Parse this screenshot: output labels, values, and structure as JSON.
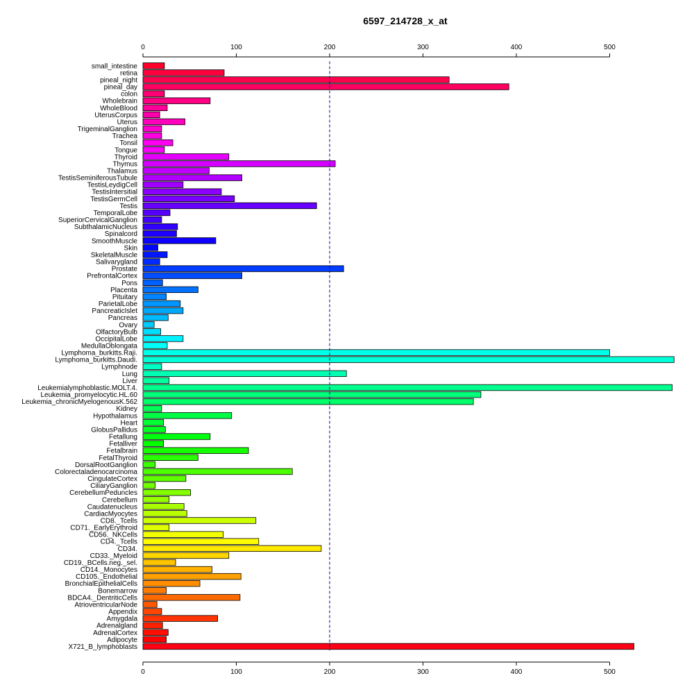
{
  "chart_data": {
    "type": "bar",
    "orientation": "horizontal",
    "title": "6597_214728_x_at",
    "xlabel": "",
    "ylabel": "",
    "xlim": [
      0,
      570
    ],
    "xticks": [
      0,
      100,
      200,
      300,
      400,
      500
    ],
    "xticks_top": true,
    "xticks_bottom": true,
    "grid": false,
    "reference_line": {
      "value": 200,
      "style": "dashed",
      "color": "#000080"
    },
    "categories": [
      "small_intestine",
      "retina",
      "pineal_night",
      "pineal_day",
      "colon",
      "Wholebrain",
      "WholeBlood",
      "UterusCorpus",
      "Uterus",
      "TrigeminalGanglion",
      "Trachea",
      "Tonsil",
      "Tongue",
      "Thyroid",
      "Thymus",
      "Thalamus",
      "TestisSeminiferousTubule",
      "TestisLeydigCell",
      "TestisIntersitial",
      "TestisGermCell",
      "Testis",
      "TemporalLobe",
      "SuperiorCervicalGanglion",
      "SubthalamicNucleus",
      "Spinalcord",
      "SmoothMuscle",
      "Skin",
      "SkeletalMuscle",
      "Salivarygland",
      "Prostate",
      "PrefrontalCortex",
      "Pons",
      "Placenta",
      "Pituitary",
      "ParietalLobe",
      "PancreaticIslet",
      "Pancreas",
      "Ovary",
      "OlfactoryBulb",
      "OccipitalLobe",
      "MedullaOblongata",
      "Lymphoma_burkitts.Raji.",
      "Lymphoma_burkitts.Daudi.",
      "Lymphnode",
      "Lung",
      "Liver",
      "Leukemialymphoblastic.MOLT.4.",
      "Leukemia_promyelocytic.HL.60",
      "Leukemia_chronicMyelogenousK.562",
      "Kidney",
      "Hypothalamus",
      "Heart",
      "GlobusPallidus",
      "Fetallung",
      "Fetalliver",
      "Fetalbrain",
      "FetalThyroid",
      "DorsalRootGanglion",
      "Colorectaladenocarcinoma",
      "CingulateCortex",
      "CiliaryGanglion",
      "CerebellumPeduncles",
      "Cerebellum",
      "Caudatenucleus",
      "CardiacMyocytes",
      "CD8._Tcells",
      "CD71._EarlyErythroid",
      "CD56._NKCells",
      "CD4._Tcells",
      "CD34.",
      "CD33._Myeloid",
      "CD19._BCells.neg._sel.",
      "CD14._Monocytes",
      "CD105._Endothelial",
      "BronchialEpithelialCells",
      "Bonemarrow",
      "BDCA4._DentriticCells",
      "AtrioventricularNode",
      "Appendix",
      "Amygdala",
      "Adrenalgland",
      "AdrenalCortex",
      "Adipocyte",
      "X721_B_lymphoblasts"
    ],
    "values": [
      23,
      87,
      328,
      392,
      23,
      72,
      26,
      18,
      45,
      20,
      20,
      32,
      23,
      92,
      206,
      71,
      106,
      43,
      84,
      98,
      186,
      29,
      20,
      37,
      36,
      78,
      16,
      26,
      18,
      215,
      106,
      21,
      59,
      25,
      40,
      43,
      27,
      12,
      19,
      43,
      26,
      500,
      569,
      20,
      218,
      28,
      567,
      362,
      354,
      20,
      95,
      22,
      24,
      72,
      22,
      113,
      59,
      13,
      160,
      46,
      13,
      51,
      28,
      44,
      47,
      121,
      28,
      86,
      124,
      191,
      92,
      35,
      74,
      105,
      61,
      25,
      104,
      15,
      20,
      80,
      21,
      27,
      25,
      526
    ]
  }
}
